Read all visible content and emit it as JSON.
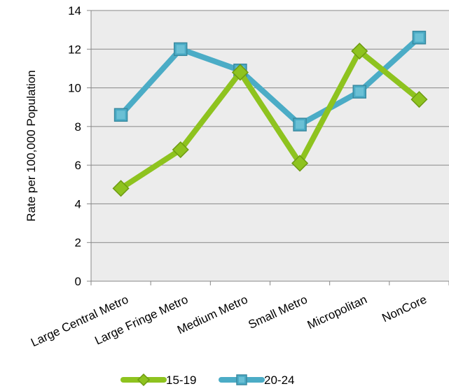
{
  "chart_data": {
    "type": "line",
    "title": "",
    "xlabel": "",
    "ylabel": "Rate per 100,000 Population",
    "categories": [
      "Large Central Metro",
      "Large Fringe Metro",
      "Medium Metro",
      "Small Metro",
      "Micropolitan",
      "NonCore"
    ],
    "ylim": [
      0,
      14
    ],
    "yticks": [
      0,
      2,
      4,
      6,
      8,
      10,
      12,
      14
    ],
    "grid": true,
    "legend_position": "bottom",
    "series": [
      {
        "name": "15-19",
        "marker": "diamond",
        "color": "#8ec31f",
        "values": [
          4.8,
          6.8,
          10.8,
          6.1,
          11.9,
          9.4
        ]
      },
      {
        "name": "20-24",
        "marker": "square",
        "color": "#4bacc6",
        "values": [
          8.6,
          12.0,
          10.9,
          8.1,
          9.8,
          12.6
        ]
      }
    ]
  }
}
